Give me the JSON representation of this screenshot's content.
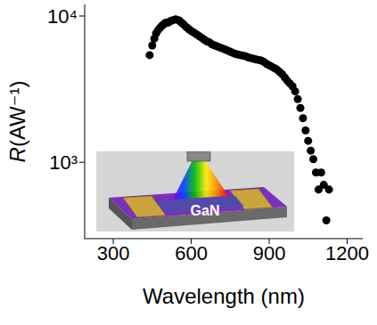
{
  "chart_data": {
    "type": "scatter",
    "x_label": "Wavelength (nm)",
    "y_label": "R(AW⁻¹)",
    "annotation": "GaN",
    "log": "y",
    "color": "#000000",
    "marker": "circle",
    "xlim": [
      190,
      1260
    ],
    "ylim": [
      300,
      12000
    ],
    "xticks": [
      300,
      600,
      900,
      1200
    ],
    "yticks": [
      {
        "value": 1000,
        "label": "10³"
      },
      {
        "value": 10000,
        "label": "10⁴"
      }
    ],
    "x": [
      440,
      450,
      458,
      465,
      472,
      480,
      488,
      495,
      502,
      510,
      518,
      525,
      532,
      540,
      548,
      555,
      562,
      570,
      578,
      585,
      592,
      600,
      610,
      620,
      630,
      640,
      650,
      660,
      670,
      680,
      690,
      700,
      710,
      720,
      730,
      740,
      750,
      760,
      770,
      780,
      790,
      800,
      810,
      820,
      830,
      840,
      850,
      860,
      870,
      880,
      890,
      900,
      910,
      920,
      930,
      940,
      950,
      960,
      970,
      980,
      990,
      1000,
      1010,
      1020,
      1030,
      1040,
      1050,
      1060,
      1070,
      1080,
      1090,
      1100,
      1110,
      1120,
      1130
    ],
    "values": [
      5400,
      6300,
      7000,
      7600,
      8000,
      8300,
      8600,
      8800,
      9000,
      9000,
      9200,
      9300,
      9400,
      9500,
      9400,
      9300,
      9000,
      8800,
      8500,
      8300,
      8100,
      7900,
      7700,
      7500,
      7300,
      7100,
      6900,
      6700,
      6600,
      6400,
      6300,
      6200,
      6100,
      6000,
      5900,
      5800,
      5700,
      5600,
      5500,
      5450,
      5400,
      5350,
      5300,
      5200,
      5150,
      5100,
      5050,
      5000,
      4950,
      4850,
      4700,
      4600,
      4500,
      4400,
      4300,
      4150,
      4000,
      3800,
      3600,
      3450,
      3300,
      3050,
      2700,
      2350,
      2000,
      1650,
      1400,
      1200,
      1050,
      850,
      650,
      850,
      700,
      400,
      650
    ]
  }
}
